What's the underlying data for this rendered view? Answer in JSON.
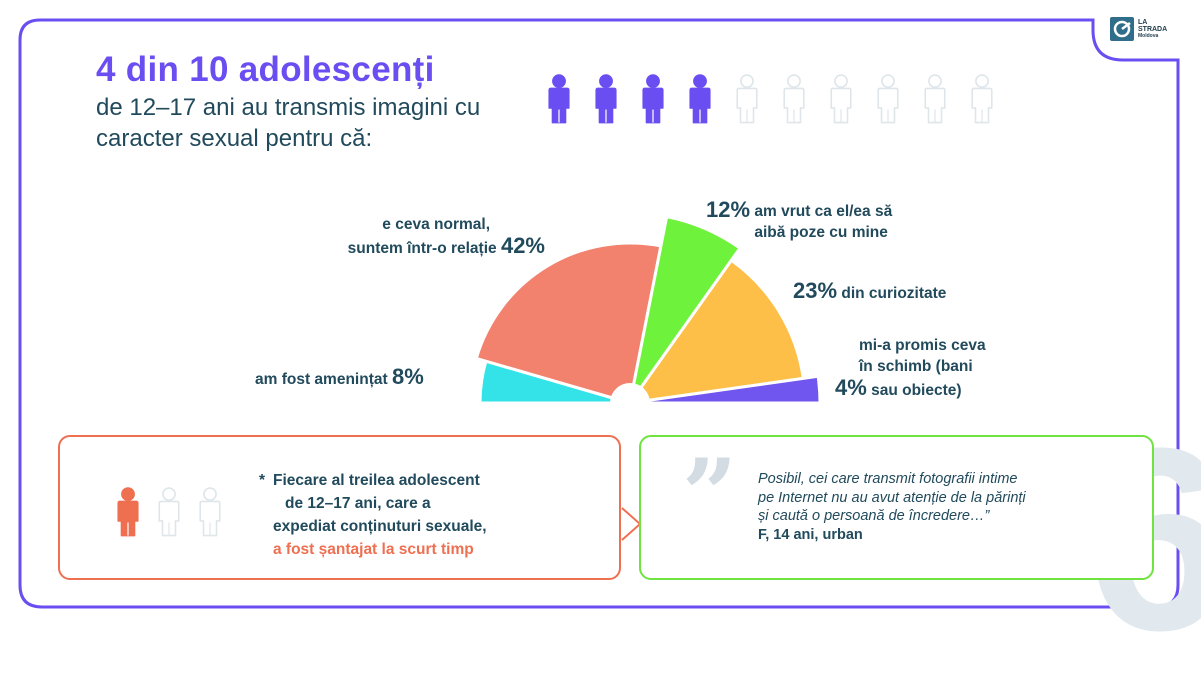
{
  "header": {
    "title": "4 din 10 adolescenți",
    "subtitle": "de 12–17 ani au transmis imagini cu caracter sexual pentru că:"
  },
  "logo": {
    "line1": "LA",
    "line2": "STRADA",
    "line3": "Moldova"
  },
  "people_icons": {
    "filled": 4,
    "total": 10,
    "filled_color": "#6a4ef2",
    "empty_color": "#dfe6ea"
  },
  "chart_data": {
    "type": "pie",
    "title": "",
    "slices": [
      {
        "label": "am fost amenințat",
        "value": 8,
        "pct_label": "8%",
        "color": "#34e3e8"
      },
      {
        "label": "e ceva normal, suntem într-o relație",
        "value": 42,
        "pct_label": "42%",
        "color": "#f2826e"
      },
      {
        "label": "am vrut ca el/ea să aibă poze cu mine",
        "value": 12,
        "pct_label": "12%",
        "color": "#6ff23c"
      },
      {
        "label": "din curiozitate",
        "value": 23,
        "pct_label": "23%",
        "color": "#fdbf47"
      },
      {
        "label": "mi-a promis ceva în schimb (bani sau obiecte)",
        "value": 4,
        "pct_label": "4%",
        "color": "#7055ef"
      }
    ]
  },
  "labels": {
    "normal_line1": "e ceva normal,",
    "normal_line2": "suntem într-o relație",
    "normal_pct": "42%",
    "threat": "am fost amenințat",
    "threat_pct": "8%",
    "wanted_pct": "12%",
    "wanted_line1": "am vrut ca el/ea să",
    "wanted_line2": "aibă poze cu mine",
    "curious_pct": "23%",
    "curious": "din curiozitate",
    "promise_line1": "mi-a promis ceva",
    "promise_line2": "în schimb (bani",
    "promise_line3": "sau obiecte)",
    "promise_pct": "4%"
  },
  "note": {
    "star": "*",
    "line1": "Fiecare al treilea adolescent",
    "line2": "de 12–17 ani, care a",
    "line3": "expediat conținuturi sexuale,",
    "highlight": "a fost șantajat la scurt timp",
    "people_filled": 1,
    "people_total": 3,
    "filled_color": "#ef6f51"
  },
  "quote": {
    "mark": "”",
    "line1": "Posibil, cei care transmit fotografii intime",
    "line2": "pe Internet nu au avut atenție de la părinți",
    "line3": "și caută o persoană de încredere…”",
    "author": "F, 14 ani, urban"
  },
  "page_number": "6",
  "colors": {
    "frame": "#6a4ef2",
    "accent_red": "#ef6f51",
    "accent_green": "#6fe340"
  }
}
